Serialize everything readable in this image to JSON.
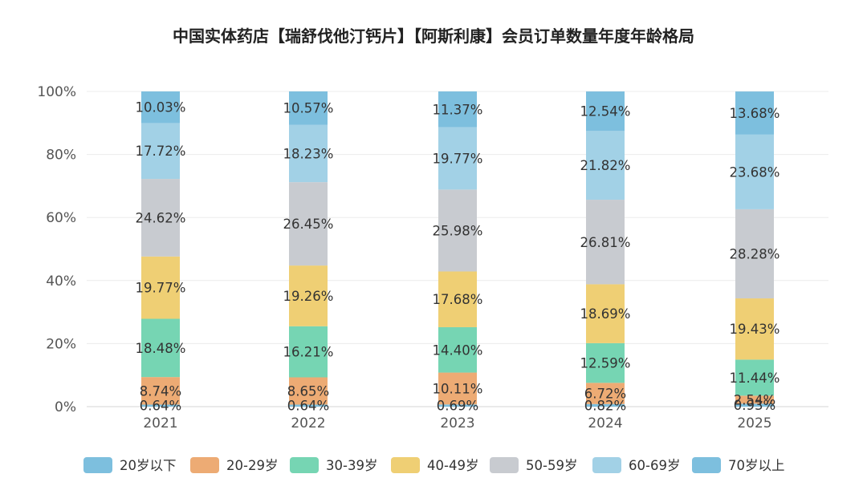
{
  "chart_data": {
    "type": "bar",
    "stacked": true,
    "normalized_percent": true,
    "title": "中国实体药店【瑞舒伐他汀钙片】【阿斯利康】会员订单数量年度年龄格局",
    "categories": [
      "2021",
      "2022",
      "2023",
      "2024",
      "2025"
    ],
    "ylim": [
      0,
      100
    ],
    "yticks": [
      "0%",
      "20%",
      "40%",
      "60%",
      "80%",
      "100%"
    ],
    "grid": true,
    "legend_position": "bottom",
    "series": [
      {
        "name": "20岁以下",
        "color": "#7DBFDE",
        "values": [
          0.64,
          0.64,
          0.69,
          0.82,
          0.93
        ],
        "labels": [
          "0.64%",
          "0.64%",
          "0.69%",
          "0.82%",
          "0.93%"
        ]
      },
      {
        "name": "20-29岁",
        "color": "#EDAB74",
        "values": [
          8.74,
          8.65,
          10.11,
          6.72,
          2.54
        ],
        "labels": [
          "8.74%",
          "8.65%",
          "10.11%",
          "6.72%",
          "2.54%"
        ]
      },
      {
        "name": "30-39岁",
        "color": "#76D5B3",
        "values": [
          18.48,
          16.21,
          14.4,
          12.59,
          11.44
        ],
        "labels": [
          "18.48%",
          "16.21%",
          "14.40%",
          "12.59%",
          "11.44%"
        ]
      },
      {
        "name": "40-49岁",
        "color": "#EFCF74",
        "values": [
          19.77,
          19.26,
          17.68,
          18.69,
          19.43
        ],
        "labels": [
          "19.77%",
          "19.26%",
          "17.68%",
          "18.69%",
          "19.43%"
        ]
      },
      {
        "name": "50-59岁",
        "color": "#C8CBD0",
        "values": [
          24.62,
          26.45,
          25.98,
          26.81,
          28.28
        ],
        "labels": [
          "24.62%",
          "26.45%",
          "25.98%",
          "26.81%",
          "28.28%"
        ]
      },
      {
        "name": "60-69岁",
        "color": "#A2D1E6",
        "values": [
          17.72,
          18.23,
          19.77,
          21.82,
          23.68
        ],
        "labels": [
          "17.72%",
          "18.23%",
          "19.77%",
          "21.82%",
          "23.68%"
        ]
      },
      {
        "name": "70岁以上",
        "color": "#7DBFDE",
        "values": [
          10.03,
          10.57,
          11.37,
          12.54,
          13.68
        ],
        "labels": [
          "10.03%",
          "10.57%",
          "11.37%",
          "12.54%",
          "13.68%"
        ]
      }
    ]
  }
}
